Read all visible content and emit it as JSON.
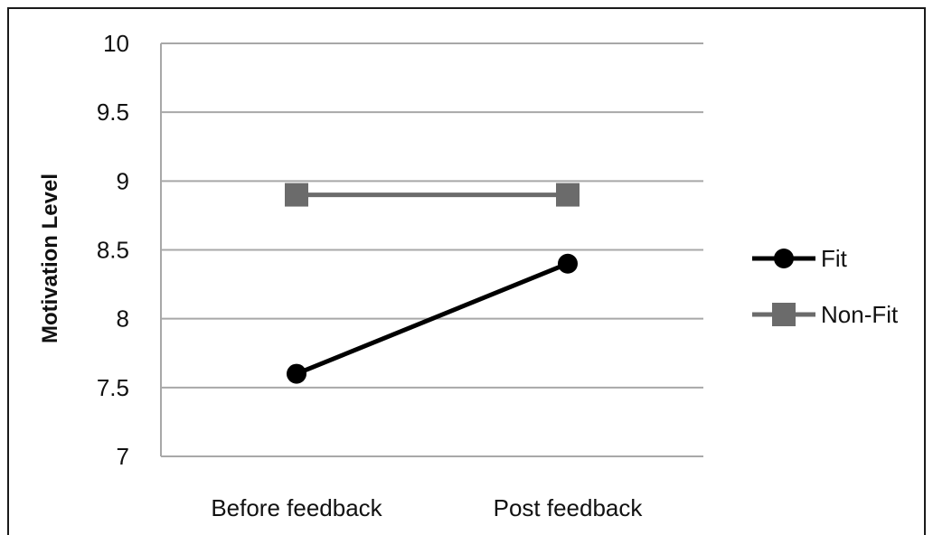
{
  "chart_data": {
    "type": "line",
    "categories": [
      "Before feedback",
      "Post feedback"
    ],
    "series": [
      {
        "name": "Fit",
        "values": [
          7.6,
          8.4
        ],
        "color": "#000000",
        "marker": "circle"
      },
      {
        "name": "Non-Fit",
        "values": [
          8.9,
          8.9
        ],
        "color": "#6b6b6b",
        "marker": "square"
      }
    ],
    "title": "",
    "xlabel": "",
    "ylabel": "Motivation Level",
    "ylim": [
      7,
      10
    ],
    "yticks": [
      "7",
      "7.5",
      "8",
      "8.5",
      "9",
      "9.5",
      "10"
    ],
    "grid": true,
    "legend_position": "right"
  }
}
